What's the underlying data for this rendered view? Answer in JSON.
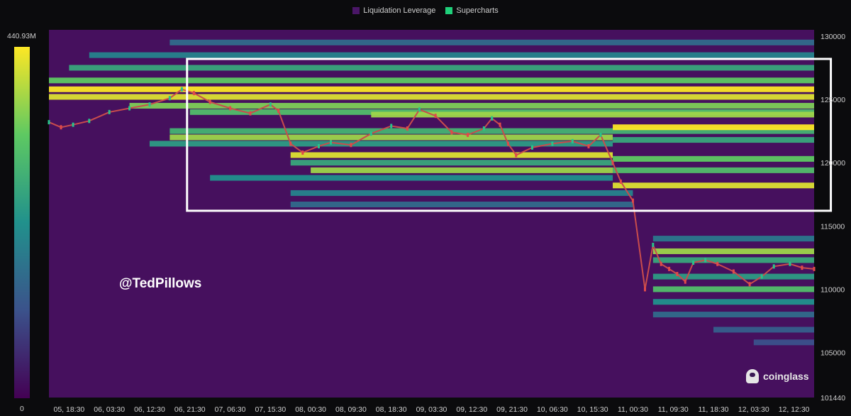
{
  "legend": {
    "items": [
      {
        "label": "Liquidation Leverage",
        "color": "#4a1667"
      },
      {
        "label": "Supercharts",
        "color": "#1fd07a"
      }
    ]
  },
  "colorbar": {
    "max_label": "440.93M",
    "min_label": "0",
    "colors": [
      "#440154",
      "#3b528b",
      "#21918c",
      "#5ec962",
      "#fde725"
    ]
  },
  "watermark": "@TedPillows",
  "brand": "coinglass",
  "highlight_box": {
    "x_start": "06, 21:30",
    "x_end": "12, 12:30",
    "y_top": 128200,
    "y_bottom": 116200,
    "color": "#ffffff"
  },
  "chart_data": {
    "type": "heatmap",
    "title": "",
    "x_tick_labels": [
      "05, 18:30",
      "06, 03:30",
      "06, 12:30",
      "06, 21:30",
      "07, 06:30",
      "07, 15:30",
      "08, 00:30",
      "08, 09:30",
      "08, 18:30",
      "09, 03:30",
      "09, 12:30",
      "09, 21:30",
      "10, 06:30",
      "10, 15:30",
      "11, 00:30",
      "11, 09:30",
      "11, 18:30",
      "12, 03:30",
      "12, 12:30"
    ],
    "y_tick_labels": [
      "130000",
      "125000",
      "120000",
      "115000",
      "110000",
      "105000",
      "101440"
    ],
    "y_range": [
      101440,
      130500
    ],
    "colorscale_range": [
      0,
      440.93
    ],
    "colorscale_unit": "M",
    "background_color": "#46105e",
    "liquidation_bands": [
      {
        "x_start": 0.0,
        "x_end": 19.0,
        "price": 125800,
        "intensity": 1.0
      },
      {
        "x_start": 0.0,
        "x_end": 19.0,
        "price": 125200,
        "intensity": 0.95
      },
      {
        "x_start": 0.0,
        "x_end": 19.0,
        "price": 126500,
        "intensity": 0.75
      },
      {
        "x_start": 0.5,
        "x_end": 19.0,
        "price": 127500,
        "intensity": 0.6
      },
      {
        "x_start": 1.0,
        "x_end": 19.0,
        "price": 128500,
        "intensity": 0.45
      },
      {
        "x_start": 3.0,
        "x_end": 19.0,
        "price": 129500,
        "intensity": 0.35
      },
      {
        "x_start": 2.0,
        "x_end": 19.0,
        "price": 124500,
        "intensity": 0.8
      },
      {
        "x_start": 3.5,
        "x_end": 19.0,
        "price": 124000,
        "intensity": 0.7
      },
      {
        "x_start": 8.0,
        "x_end": 19.0,
        "price": 123800,
        "intensity": 0.85
      },
      {
        "x_start": 3.0,
        "x_end": 19.0,
        "price": 122500,
        "intensity": 0.65
      },
      {
        "x_start": 3.0,
        "x_end": 14.0,
        "price": 122000,
        "intensity": 0.85
      },
      {
        "x_start": 2.5,
        "x_end": 14.0,
        "price": 121500,
        "intensity": 0.55
      },
      {
        "x_start": 6.0,
        "x_end": 14.0,
        "price": 120600,
        "intensity": 0.95
      },
      {
        "x_start": 6.0,
        "x_end": 14.0,
        "price": 120000,
        "intensity": 0.6
      },
      {
        "x_start": 6.5,
        "x_end": 14.0,
        "price": 119400,
        "intensity": 0.85
      },
      {
        "x_start": 4.0,
        "x_end": 14.0,
        "price": 118800,
        "intensity": 0.5
      },
      {
        "x_start": 6.0,
        "x_end": 14.5,
        "price": 117600,
        "intensity": 0.45
      },
      {
        "x_start": 6.0,
        "x_end": 14.5,
        "price": 116700,
        "intensity": 0.35
      },
      {
        "x_start": 14.0,
        "x_end": 19.0,
        "price": 122800,
        "intensity": 1.0
      },
      {
        "x_start": 14.0,
        "x_end": 19.0,
        "price": 121800,
        "intensity": 0.6
      },
      {
        "x_start": 14.0,
        "x_end": 19.0,
        "price": 120300,
        "intensity": 0.75
      },
      {
        "x_start": 14.0,
        "x_end": 19.0,
        "price": 119400,
        "intensity": 0.7
      },
      {
        "x_start": 14.0,
        "x_end": 19.0,
        "price": 118200,
        "intensity": 0.95
      },
      {
        "x_start": 15.0,
        "x_end": 19.0,
        "price": 114000,
        "intensity": 0.4
      },
      {
        "x_start": 15.0,
        "x_end": 19.0,
        "price": 113000,
        "intensity": 0.85
      },
      {
        "x_start": 15.0,
        "x_end": 19.0,
        "price": 112300,
        "intensity": 0.6
      },
      {
        "x_start": 15.0,
        "x_end": 19.0,
        "price": 111000,
        "intensity": 0.55
      },
      {
        "x_start": 15.0,
        "x_end": 19.0,
        "price": 110000,
        "intensity": 0.7
      },
      {
        "x_start": 15.0,
        "x_end": 19.0,
        "price": 109000,
        "intensity": 0.5
      },
      {
        "x_start": 15.0,
        "x_end": 19.0,
        "price": 108000,
        "intensity": 0.35
      },
      {
        "x_start": 16.5,
        "x_end": 19.0,
        "price": 106800,
        "intensity": 0.3
      },
      {
        "x_start": 17.5,
        "x_end": 19.0,
        "price": 105800,
        "intensity": 0.25
      }
    ],
    "price_series": {
      "name": "Supercharts",
      "x": [
        0.0,
        0.3,
        0.6,
        1.0,
        1.5,
        2.0,
        2.5,
        3.0,
        3.3,
        3.6,
        4.0,
        4.5,
        5.0,
        5.5,
        5.7,
        6.0,
        6.3,
        6.7,
        7.0,
        7.5,
        8.0,
        8.5,
        8.9,
        9.2,
        9.6,
        10.0,
        10.4,
        10.8,
        11.0,
        11.2,
        11.4,
        11.6,
        12.0,
        12.5,
        13.0,
        13.4,
        13.7,
        14.0,
        14.2,
        14.5,
        14.8,
        15.0,
        15.2,
        15.4,
        15.6,
        15.8,
        16.0,
        16.3,
        16.6,
        17.0,
        17.4,
        17.7,
        18.0,
        18.4,
        18.7,
        19.0
      ],
      "y": [
        123200,
        122800,
        123000,
        123300,
        124000,
        124300,
        124600,
        125100,
        125800,
        125500,
        124800,
        124300,
        123900,
        124600,
        124100,
        121500,
        120800,
        121300,
        121600,
        121400,
        122300,
        122900,
        122700,
        124200,
        123700,
        122400,
        122200,
        122700,
        123500,
        123000,
        121500,
        120600,
        121200,
        121500,
        121700,
        121300,
        122200,
        120000,
        118500,
        117000,
        110000,
        113500,
        112000,
        111600,
        111200,
        110600,
        112100,
        112300,
        112000,
        111400,
        110400,
        111000,
        111800,
        112000,
        111700,
        111600
      ]
    }
  }
}
